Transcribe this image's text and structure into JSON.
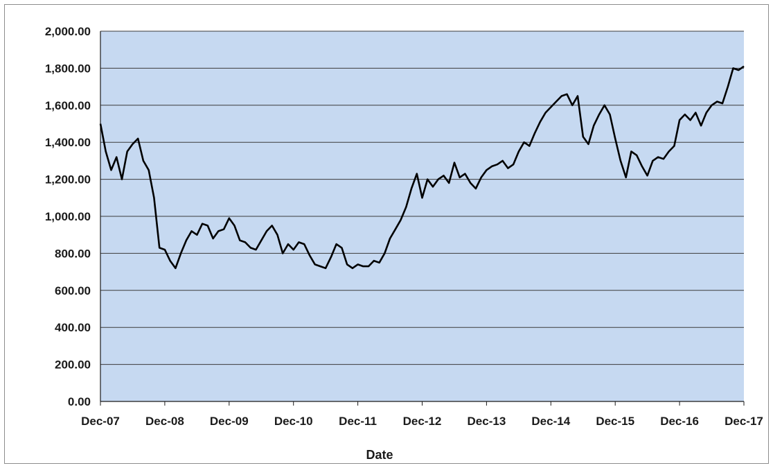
{
  "chart_data": {
    "type": "line",
    "title": "",
    "xlabel": "Date",
    "ylabel": "",
    "ylim": [
      0,
      2000
    ],
    "y_ticks": [
      "0.00",
      "200.00",
      "400.00",
      "600.00",
      "800.00",
      "1,000.00",
      "1,200.00",
      "1,400.00",
      "1,600.00",
      "1,800.00",
      "2,000.00"
    ],
    "x_ticks": [
      "Dec-07",
      "Dec-08",
      "Dec-09",
      "Dec-10",
      "Dec-11",
      "Dec-12",
      "Dec-13",
      "Dec-14",
      "Dec-15",
      "Dec-16",
      "Dec-17"
    ],
    "grid": true,
    "legend": "none",
    "colors": {
      "plot_background": "#c6d9f1",
      "gridline": "#3a3a3a",
      "line": "#000000"
    },
    "series": [
      {
        "x": [
          "Dec-07",
          "Jan-08",
          "Feb-08",
          "Mar-08",
          "Apr-08",
          "May-08",
          "Jun-08",
          "Jul-08",
          "Aug-08",
          "Sep-08",
          "Oct-08",
          "Nov-08",
          "Dec-08",
          "Jan-09",
          "Feb-09",
          "Mar-09",
          "Apr-09",
          "May-09",
          "Jun-09",
          "Jul-09",
          "Aug-09",
          "Sep-09",
          "Oct-09",
          "Nov-09",
          "Dec-09",
          "Jan-10",
          "Feb-10",
          "Mar-10",
          "Apr-10",
          "May-10",
          "Jun-10",
          "Jul-10",
          "Aug-10",
          "Sep-10",
          "Oct-10",
          "Nov-10",
          "Dec-10",
          "Jan-11",
          "Feb-11",
          "Mar-11",
          "Apr-11",
          "May-11",
          "Jun-11",
          "Jul-11",
          "Aug-11",
          "Sep-11",
          "Oct-11",
          "Nov-11",
          "Dec-11",
          "Jan-12",
          "Feb-12",
          "Mar-12",
          "Apr-12",
          "May-12",
          "Jun-12",
          "Jul-12",
          "Aug-12",
          "Sep-12",
          "Oct-12",
          "Nov-12",
          "Dec-12",
          "Jan-13",
          "Feb-13",
          "Mar-13",
          "Apr-13",
          "May-13",
          "Jun-13",
          "Jul-13",
          "Aug-13",
          "Sep-13",
          "Oct-13",
          "Nov-13",
          "Dec-13",
          "Jan-14",
          "Feb-14",
          "Mar-14",
          "Apr-14",
          "May-14",
          "Jun-14",
          "Jul-14",
          "Aug-14",
          "Sep-14",
          "Oct-14",
          "Nov-14",
          "Dec-14",
          "Jan-15",
          "Feb-15",
          "Mar-15",
          "Apr-15",
          "May-15",
          "Jun-15",
          "Jul-15",
          "Aug-15",
          "Sep-15",
          "Oct-15",
          "Nov-15",
          "Dec-15",
          "Jan-16",
          "Feb-16",
          "Mar-16",
          "Apr-16",
          "May-16",
          "Jun-16",
          "Jul-16",
          "Aug-16",
          "Sep-16",
          "Oct-16",
          "Nov-16",
          "Dec-16",
          "Jan-17",
          "Feb-17",
          "Mar-17",
          "Apr-17",
          "May-17",
          "Jun-17",
          "Jul-17",
          "Aug-17",
          "Sep-17",
          "Oct-17",
          "Nov-17",
          "Dec-17"
        ],
        "values": [
          1500,
          1350,
          1250,
          1320,
          1200,
          1350,
          1390,
          1420,
          1300,
          1250,
          1100,
          830,
          820,
          760,
          720,
          800,
          870,
          920,
          900,
          960,
          950,
          880,
          920,
          930,
          990,
          950,
          870,
          860,
          830,
          820,
          870,
          920,
          950,
          900,
          800,
          850,
          820,
          860,
          850,
          790,
          740,
          730,
          720,
          780,
          850,
          830,
          740,
          720,
          740,
          730,
          730,
          760,
          750,
          800,
          880,
          930,
          980,
          1050,
          1150,
          1230,
          1100,
          1200,
          1160,
          1200,
          1220,
          1180,
          1290,
          1210,
          1230,
          1180,
          1150,
          1210,
          1250,
          1270,
          1280,
          1300,
          1260,
          1280,
          1350,
          1400,
          1380,
          1450,
          1510,
          1560,
          1590,
          1620,
          1650,
          1660,
          1600,
          1650,
          1430,
          1390,
          1490,
          1550,
          1600,
          1550,
          1420,
          1300,
          1210,
          1350,
          1330,
          1270,
          1220,
          1300,
          1320,
          1310,
          1350,
          1380,
          1520,
          1550,
          1520,
          1560,
          1490,
          1560,
          1600,
          1620,
          1610,
          1700,
          1800,
          1790,
          1810
        ]
      }
    ]
  }
}
